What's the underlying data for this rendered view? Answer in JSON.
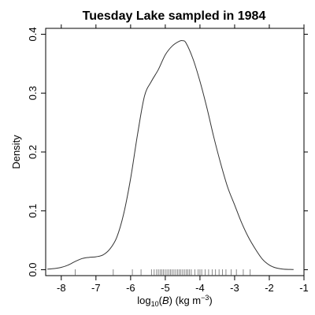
{
  "chart_data": {
    "type": "line",
    "title": "Tuesday Lake sampled in 1984",
    "ylabel": "Density",
    "xlabel": {
      "prefix": "log",
      "sub": "10",
      "open": "(",
      "var": "B",
      "close": ")",
      "unit_pre": " (kg m",
      "unit_sup": "−3",
      "unit_post": ")"
    },
    "xlim": [
      -8.45,
      -1.0
    ],
    "ylim": [
      -0.01,
      0.41
    ],
    "x_ticks": [
      -8,
      -7,
      -6,
      -5,
      -4,
      -3,
      -2,
      -1
    ],
    "x_tick_labels": [
      "-8",
      "-7",
      "-6",
      "-5",
      "-4",
      "-3",
      "-2",
      "-1"
    ],
    "y_ticks": [
      0.0,
      0.1,
      0.2,
      0.3,
      0.4
    ],
    "y_tick_labels": [
      "0.0",
      "0.1",
      "0.2",
      "0.3",
      "0.4"
    ],
    "grid": false,
    "box": true,
    "series": [
      {
        "x": [
          -8.4,
          -8.2,
          -8.0,
          -7.8,
          -7.6,
          -7.4,
          -7.2,
          -7.0,
          -6.8,
          -6.6,
          -6.4,
          -6.2,
          -6.0,
          -5.8,
          -5.6,
          -5.4,
          -5.2,
          -5.0,
          -4.8,
          -4.6,
          -4.5,
          -4.4,
          -4.2,
          -4.0,
          -3.8,
          -3.6,
          -3.4,
          -3.2,
          -3.0,
          -2.8,
          -2.6,
          -2.4,
          -2.2,
          -2.0,
          -1.8,
          -1.6,
          -1.4,
          -1.3
        ],
        "y": [
          0.001,
          0.002,
          0.004,
          0.008,
          0.014,
          0.019,
          0.021,
          0.022,
          0.025,
          0.035,
          0.055,
          0.095,
          0.155,
          0.23,
          0.295,
          0.32,
          0.34,
          0.365,
          0.38,
          0.388,
          0.389,
          0.385,
          0.358,
          0.32,
          0.275,
          0.225,
          0.18,
          0.14,
          0.11,
          0.08,
          0.055,
          0.035,
          0.018,
          0.008,
          0.003,
          0.001,
          0.0005,
          0.0003
        ],
        "color": "#333333"
      }
    ],
    "rug": [
      -7.6,
      -6.5,
      -5.95,
      -5.7,
      -5.4,
      -5.32,
      -5.25,
      -5.2,
      -5.15,
      -5.1,
      -5.05,
      -5.0,
      -4.95,
      -4.9,
      -4.85,
      -4.8,
      -4.75,
      -4.7,
      -4.65,
      -4.6,
      -4.55,
      -4.5,
      -4.45,
      -4.4,
      -4.35,
      -4.3,
      -4.25,
      -4.15,
      -4.05,
      -4.0,
      -3.95,
      -3.85,
      -3.75,
      -3.65,
      -3.55,
      -3.45,
      -3.35,
      -3.25,
      -3.1,
      -2.95,
      -2.75,
      -2.55
    ]
  }
}
